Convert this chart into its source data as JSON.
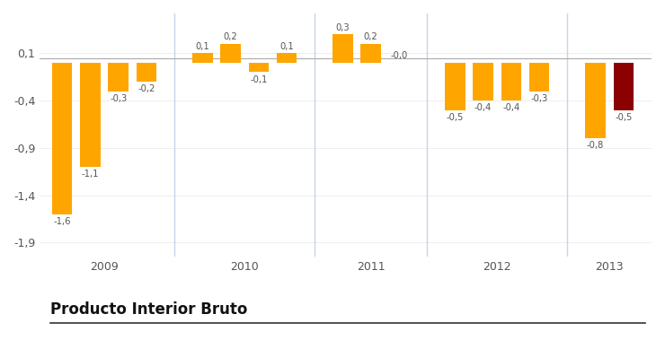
{
  "values": [
    -1.6,
    -1.1,
    -0.3,
    -0.2,
    0.1,
    0.2,
    -0.1,
    0.1,
    0.3,
    0.2,
    -0.0,
    -0.5,
    -0.4,
    -0.4,
    -0.3,
    -0.8,
    -0.5
  ],
  "labels": [
    "-1,6",
    "-1,1",
    "-0,3",
    "-0,2",
    "0,1",
    "0,2",
    "-0,1",
    "0,1",
    "0,3",
    "0,2",
    "-0,0",
    "-0,5",
    "-0,4",
    "-0,4",
    "-0,3",
    "-0,8",
    "-0,5"
  ],
  "colors": [
    "#FFA500",
    "#FFA500",
    "#FFA500",
    "#FFA500",
    "#FFA500",
    "#FFA500",
    "#FFA500",
    "#FFA500",
    "#FFA500",
    "#FFA500",
    "#FFA500",
    "#FFA500",
    "#FFA500",
    "#FFA500",
    "#FFA500",
    "#FFA500",
    "#8B0000"
  ],
  "x_positions": [
    1,
    2,
    3,
    4,
    6,
    7,
    8,
    9,
    11,
    12,
    13,
    15,
    16,
    17,
    18,
    20,
    21
  ],
  "year_tick_positions": [
    2.5,
    7.5,
    12,
    16.5,
    20.5
  ],
  "year_labels": [
    "2009",
    "2010",
    "2011",
    "2012",
    "2013"
  ],
  "year_vline_x": [
    5.0,
    10.0,
    14.0,
    19.0
  ],
  "yticks": [
    -1.9,
    -1.4,
    -0.9,
    -0.4,
    0.1
  ],
  "ytick_labels": [
    "-1,9",
    "-1,4",
    "-0,9",
    "-0,4",
    "0,1"
  ],
  "ylim": [
    -2.05,
    0.52
  ],
  "xlim": [
    0.2,
    22.0
  ],
  "title": "Producto Interior Bruto",
  "background_color": "#FFFFFF",
  "bar_width": 0.72,
  "zero_line_color": "#AAAAAA",
  "vline_color": "#C8D4E8",
  "label_fontsize": 7.2,
  "axis_fontsize": 9,
  "title_fontsize": 12
}
